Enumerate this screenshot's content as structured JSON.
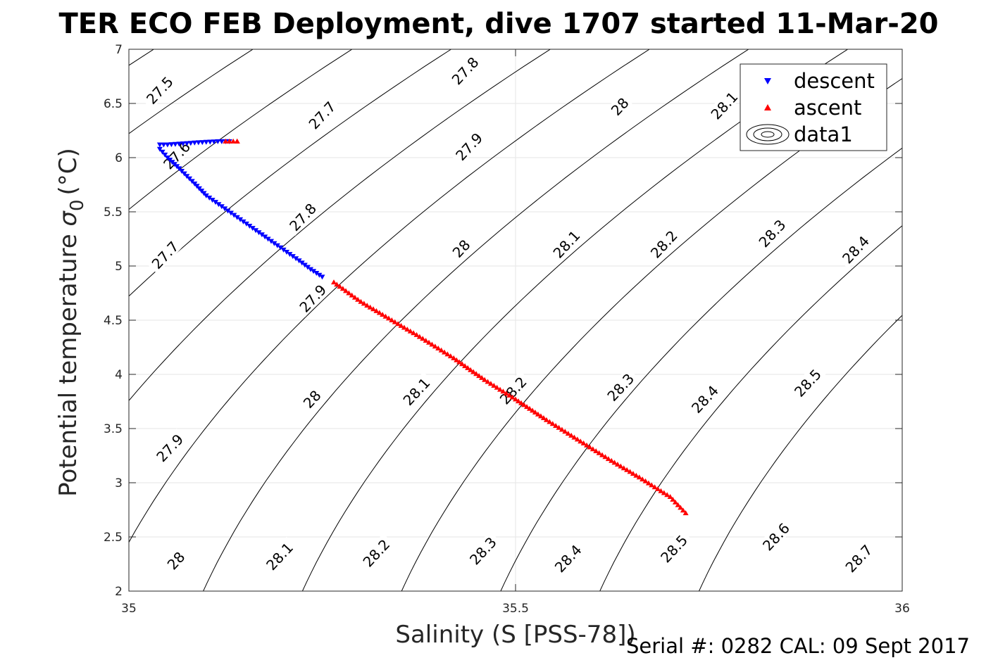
{
  "chart_data": {
    "type": "scatter",
    "title": "TER ECO FEB Deployment, dive 1707 started 11-Mar-20",
    "xlabel": "Salinity (S [PSS-78])",
    "ylabel_main": "Potential temperature",
    "ylabel_symbol": "σ",
    "ylabel_sub": "0",
    "ylabel_unit": "(°C)",
    "xlim": [
      35,
      36
    ],
    "ylim": [
      2,
      7
    ],
    "x_ticks": [
      {
        "value": 35,
        "label": "35"
      },
      {
        "value": 35.5,
        "label": "35.5"
      },
      {
        "value": 36,
        "label": "36"
      }
    ],
    "y_ticks": [
      {
        "value": 2,
        "label": "2"
      },
      {
        "value": 2.5,
        "label": "2.5"
      },
      {
        "value": 3,
        "label": "3"
      },
      {
        "value": 3.5,
        "label": "3.5"
      },
      {
        "value": 4,
        "label": "4"
      },
      {
        "value": 4.5,
        "label": "4.5"
      },
      {
        "value": 5,
        "label": "5"
      },
      {
        "value": 5.5,
        "label": "5.5"
      },
      {
        "value": 6,
        "label": "6"
      },
      {
        "value": 6.5,
        "label": "6.5"
      },
      {
        "value": 7,
        "label": "7"
      }
    ],
    "grid": true,
    "legend_position": "top-right",
    "colors": {
      "descent": "#0000ff",
      "ascent": "#ff0000",
      "contour": "#000000",
      "grid": "#e6e6e6",
      "axis": "#262626"
    },
    "series": [
      {
        "name": "descent",
        "marker": "triangle-down",
        "color": "#0000ff",
        "x": [
          35.13,
          35.115,
          35.09,
          35.07,
          35.05,
          35.04,
          35.04,
          35.05,
          35.065,
          35.085,
          35.1,
          35.12,
          35.14,
          35.16,
          35.18,
          35.2,
          35.22,
          35.235,
          35.25
        ],
        "y": [
          6.15,
          6.15,
          6.14,
          6.13,
          6.12,
          6.12,
          6.08,
          6.0,
          5.9,
          5.76,
          5.65,
          5.55,
          5.45,
          5.35,
          5.25,
          5.15,
          5.05,
          4.97,
          4.9
        ]
      },
      {
        "name": "ascent",
        "marker": "triangle-up",
        "color": "#ff0000",
        "x": [
          35.14,
          35.125,
          35.265,
          35.3,
          35.34,
          35.38,
          35.42,
          35.46,
          35.5,
          35.54,
          35.58,
          35.62,
          35.66,
          35.7,
          35.72
        ],
        "y": [
          6.15,
          6.15,
          4.85,
          4.67,
          4.5,
          4.33,
          4.15,
          3.95,
          3.77,
          3.58,
          3.4,
          3.22,
          3.05,
          2.87,
          2.72
        ]
      }
    ],
    "legend": [
      {
        "name": "descent"
      },
      {
        "name": "ascent"
      },
      {
        "name": "data1"
      }
    ],
    "contour_levels": [
      27.5,
      27.6,
      27.7,
      27.8,
      27.9,
      28.0,
      28.1,
      28.2,
      28.3,
      28.4,
      28.5,
      28.6,
      28.7
    ],
    "contour_labels": [
      {
        "text": "27.5",
        "x": 35.04,
        "y": 6.62
      },
      {
        "text": "27.6",
        "x": 35.062,
        "y": 6.02
      },
      {
        "text": "27.7",
        "x": 35.047,
        "y": 5.1
      },
      {
        "text": "27.7",
        "x": 35.25,
        "y": 6.39
      },
      {
        "text": "27.8",
        "x": 35.225,
        "y": 5.45
      },
      {
        "text": "27.8",
        "x": 35.435,
        "y": 6.8
      },
      {
        "text": "27.9",
        "x": 35.053,
        "y": 3.32
      },
      {
        "text": "27.9",
        "x": 35.238,
        "y": 4.7
      },
      {
        "text": "27.9",
        "x": 35.44,
        "y": 6.1
      },
      {
        "text": "28",
        "x": 35.061,
        "y": 2.28
      },
      {
        "text": "28",
        "x": 35.237,
        "y": 3.77
      },
      {
        "text": "28",
        "x": 35.43,
        "y": 5.16
      },
      {
        "text": "28",
        "x": 35.635,
        "y": 6.47
      },
      {
        "text": "28.1",
        "x": 35.195,
        "y": 2.32
      },
      {
        "text": "28.1",
        "x": 35.372,
        "y": 3.84
      },
      {
        "text": "28.1",
        "x": 35.566,
        "y": 5.2
      },
      {
        "text": "28.1",
        "x": 35.77,
        "y": 6.48
      },
      {
        "text": "28.2",
        "x": 35.32,
        "y": 2.35
      },
      {
        "text": "28.2",
        "x": 35.497,
        "y": 3.85
      },
      {
        "text": "28.2",
        "x": 35.692,
        "y": 5.2
      },
      {
        "text": "28.3",
        "x": 35.458,
        "y": 2.37
      },
      {
        "text": "28.3",
        "x": 35.636,
        "y": 3.88
      },
      {
        "text": "28.3",
        "x": 35.832,
        "y": 5.3
      },
      {
        "text": "28.4",
        "x": 35.568,
        "y": 2.3
      },
      {
        "text": "28.4",
        "x": 35.745,
        "y": 3.77
      },
      {
        "text": "28.4",
        "x": 35.94,
        "y": 5.15
      },
      {
        "text": "28.5",
        "x": 35.705,
        "y": 2.39
      },
      {
        "text": "28.5",
        "x": 35.878,
        "y": 3.92
      },
      {
        "text": "28.6",
        "x": 35.837,
        "y": 2.5
      },
      {
        "text": "28.7",
        "x": 35.944,
        "y": 2.3
      }
    ]
  },
  "footer": {
    "serial": "Serial #: 0282  CAL: 09 Sept 2017"
  }
}
